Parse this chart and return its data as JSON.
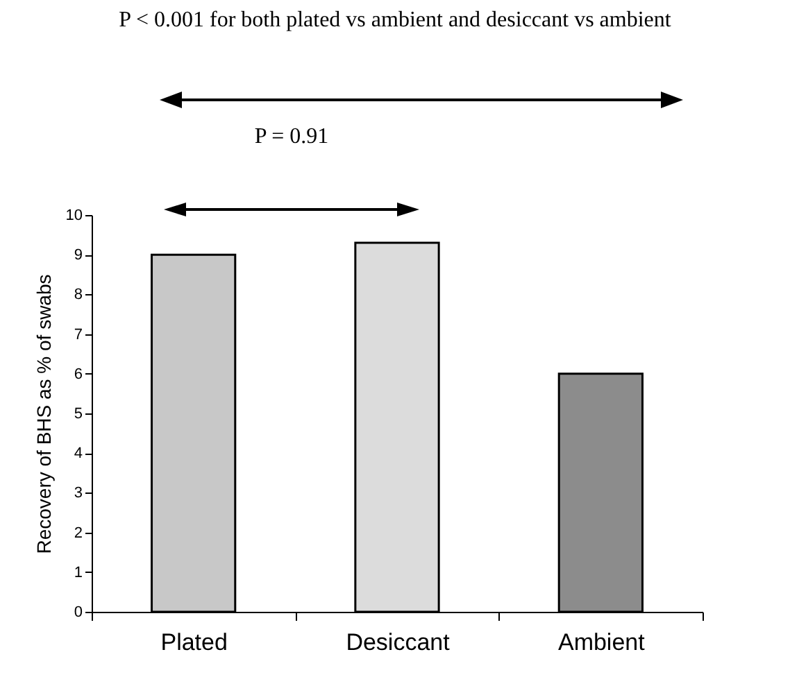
{
  "chart_data": {
    "type": "bar",
    "title": "P < 0.001 for both plated vs ambient and desiccant vs ambient",
    "ylabel": "Recovery of BHS as % of swabs",
    "categories": [
      "Plated",
      "Desiccant",
      "Ambient"
    ],
    "values": [
      9.0,
      9.3,
      6.0
    ],
    "colors": [
      "#c8c8c8",
      "#dcdcdc",
      "#8c8c8c"
    ],
    "ylim": [
      0,
      10
    ],
    "yticks": [
      0,
      1,
      2,
      3,
      4,
      5,
      6,
      7,
      8,
      9,
      10
    ],
    "annotations": [
      "P = 0.91"
    ],
    "grid": false
  }
}
